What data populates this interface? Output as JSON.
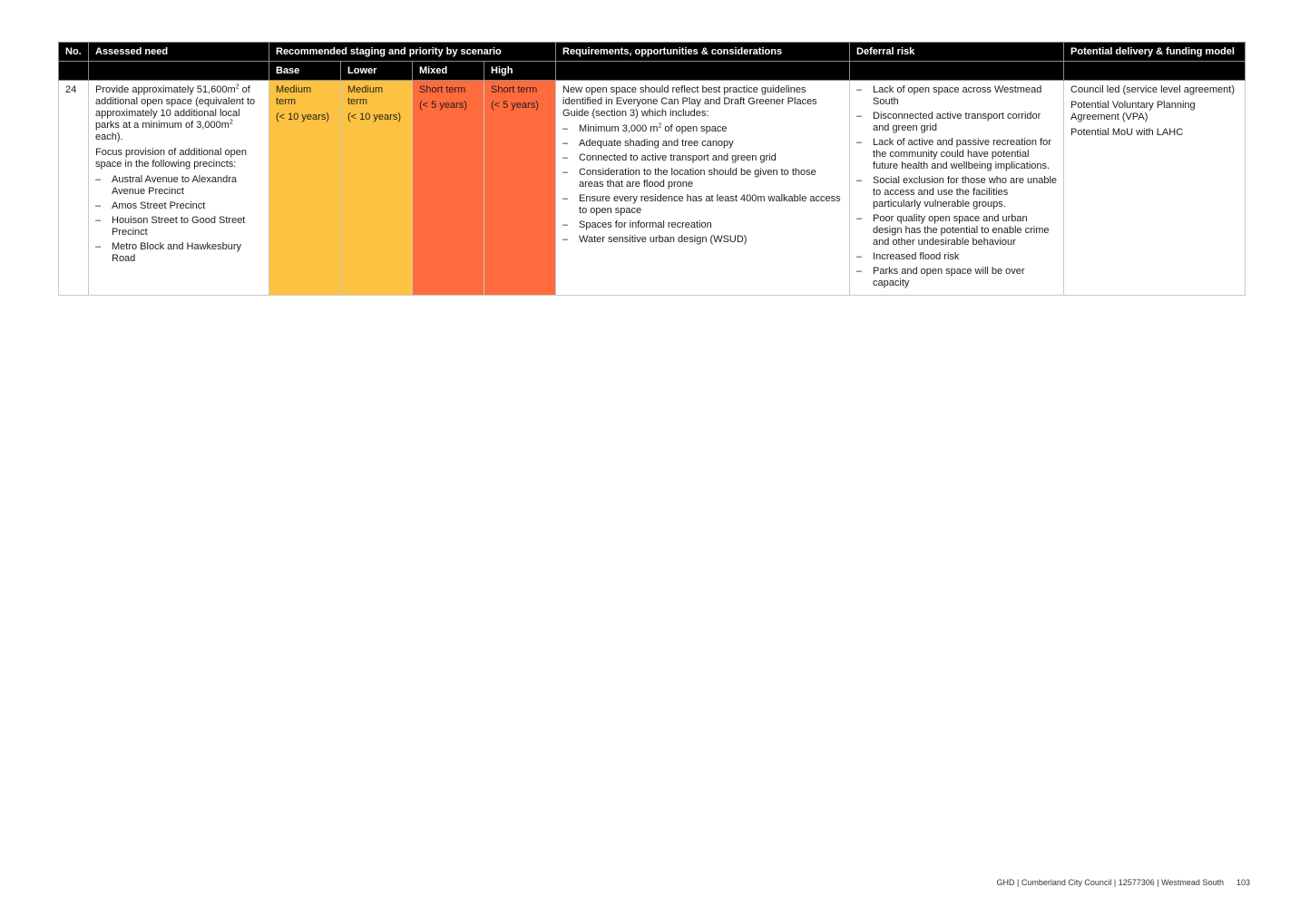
{
  "table": {
    "headers": {
      "no": "No.",
      "assessed_need": "Assessed need",
      "staging": "Recommended staging and priority by scenario",
      "requirements": "Requirements, opportunities & considerations",
      "deferral": "Deferral risk",
      "delivery": "Potential delivery & funding model"
    },
    "scenarios": [
      "Base",
      "Lower",
      "Mixed",
      "High"
    ],
    "row": {
      "no": "24",
      "need": {
        "p1_a": "Provide approximately 51,600m",
        "p1_sup1": "2",
        "p1_b": " of additional open space (equivalent to approximately 10 additional local parks at a minimum of 3,000m",
        "p1_sup2": "2",
        "p1_c": " each).",
        "p2": "Focus provision of additional open space in the following precincts:",
        "precincts": [
          "Austral Avenue to Alexandra Avenue Precinct",
          "Amos Street Precinct",
          "Houison Street to Good Street Precinct",
          "Metro Block and Hawkesbury Road"
        ]
      },
      "staging": [
        {
          "term": "Medium term",
          "range": "(< 10 years)",
          "color": "#fdc242"
        },
        {
          "term": "Medium term",
          "range": "(< 10 years)",
          "color": "#fdc242"
        },
        {
          "term": "Short term",
          "range": "(< 5 years)",
          "color": "#ff6b3d"
        },
        {
          "term": "Short term",
          "range": "(< 5 years)",
          "color": "#ff6b3d"
        }
      ],
      "requirements": {
        "intro": "New open space should reflect best practice guidelines identified in Everyone Can Play and Draft Greener Places Guide (section 3) which includes:",
        "item1_a": "Minimum 3,000 m",
        "item1_sup": "2",
        "item1_b": " of open space",
        "items": [
          "Adequate shading and tree canopy",
          "Connected to active transport and green grid",
          "Consideration to the location should be given to those areas that are flood prone",
          "Ensure every residence has at least 400m walkable access to open space",
          "Spaces for informal recreation",
          "Water sensitive urban design (WSUD)"
        ]
      },
      "deferral": [
        "Lack of open space across Westmead South",
        "Disconnected active transport corridor and green grid",
        "Lack of active and passive recreation for the community could have potential future health and wellbeing implications.",
        "Social exclusion for those who are unable to access and use the facilities particularly vulnerable groups.",
        "Poor quality open space and urban design has the potential to enable crime and other undesirable behaviour",
        "Increased flood risk",
        "Parks and open space will be over capacity"
      ],
      "delivery": [
        "Council led (service level agreement)",
        "Potential Voluntary Planning Agreement (VPA)",
        "Potential MoU with LAHC"
      ]
    }
  },
  "footer": {
    "text": "GHD | Cumberland City Council | 12577306 | Westmead South",
    "page": "103"
  },
  "dash_glyph": "–"
}
